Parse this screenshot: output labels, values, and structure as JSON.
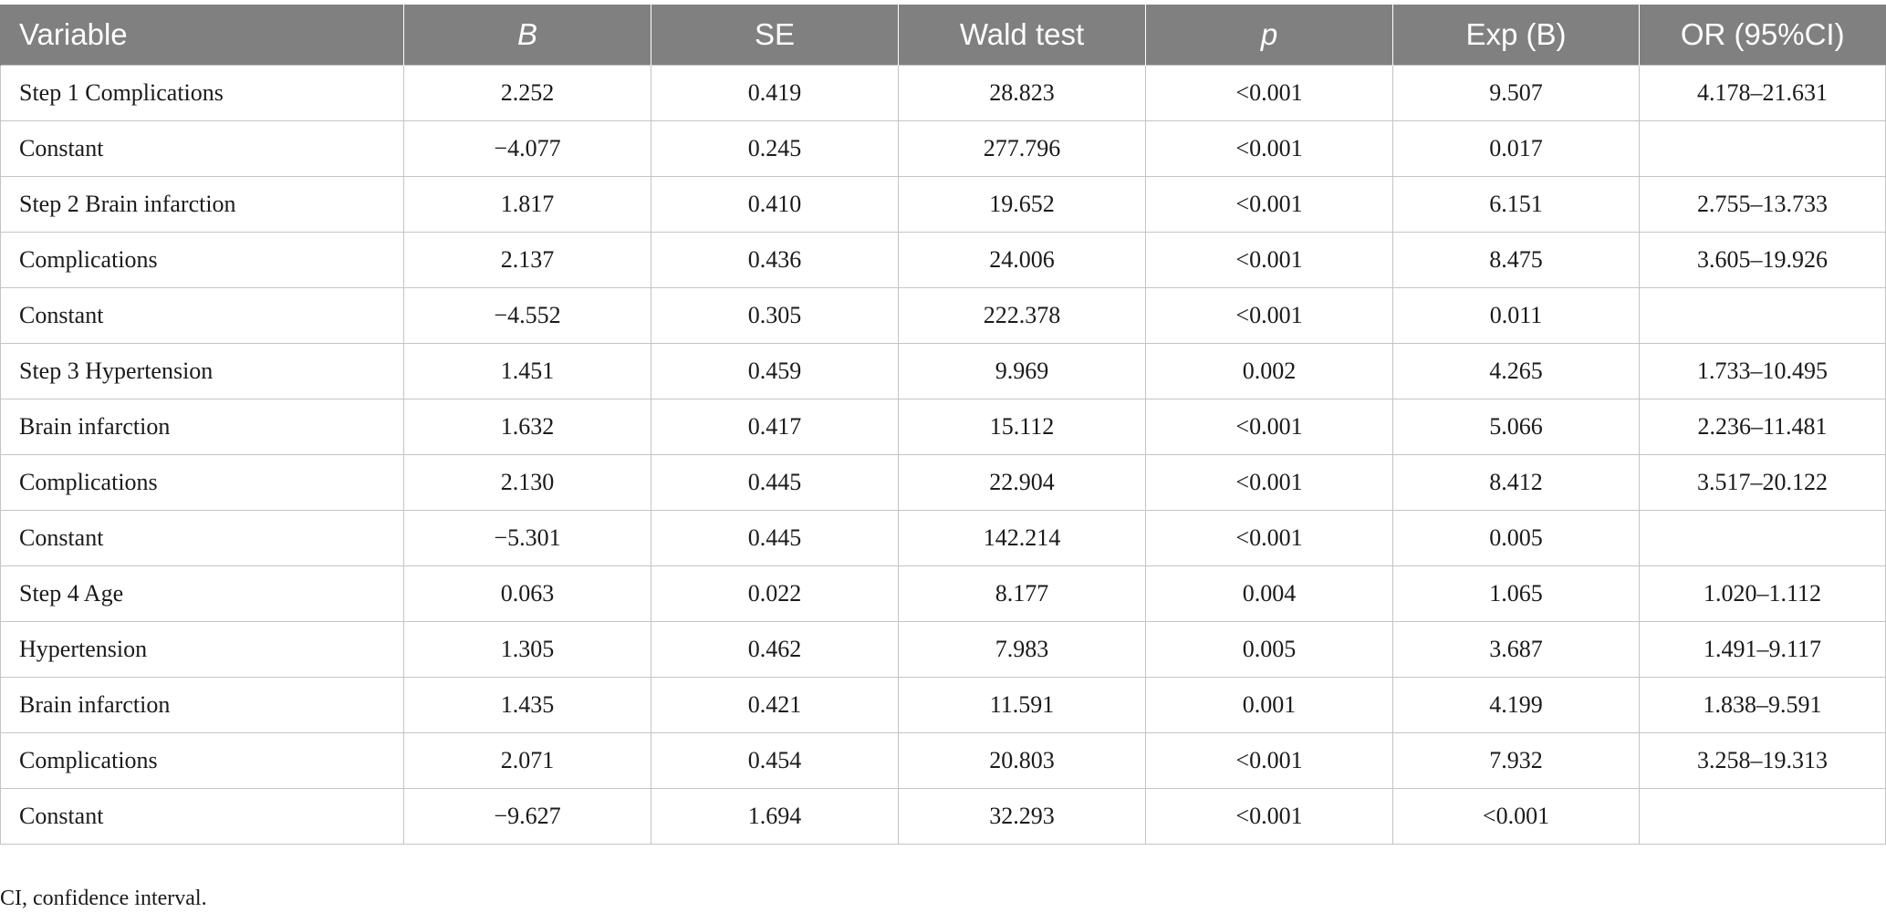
{
  "table": {
    "headers": [
      "Variable",
      "B",
      "SE",
      "Wald test",
      "p",
      "Exp (B)",
      "OR (95%CI)"
    ],
    "rows": [
      [
        "Step 1 Complications",
        "2.252",
        "0.419",
        "28.823",
        "<0.001",
        "9.507",
        "4.178–21.631"
      ],
      [
        "Constant",
        "−4.077",
        "0.245",
        "277.796",
        "<0.001",
        "0.017",
        ""
      ],
      [
        "Step 2 Brain infarction",
        "1.817",
        "0.410",
        "19.652",
        "<0.001",
        "6.151",
        "2.755–13.733"
      ],
      [
        "Complications",
        "2.137",
        "0.436",
        "24.006",
        "<0.001",
        "8.475",
        "3.605–19.926"
      ],
      [
        "Constant",
        "−4.552",
        "0.305",
        "222.378",
        "<0.001",
        "0.011",
        ""
      ],
      [
        "Step 3 Hypertension",
        "1.451",
        "0.459",
        "9.969",
        "0.002",
        "4.265",
        "1.733–10.495"
      ],
      [
        "Brain infarction",
        "1.632",
        "0.417",
        "15.112",
        "<0.001",
        "5.066",
        "2.236–11.481"
      ],
      [
        "Complications",
        "2.130",
        "0.445",
        "22.904",
        "<0.001",
        "8.412",
        "3.517–20.122"
      ],
      [
        "Constant",
        "−5.301",
        "0.445",
        "142.214",
        "<0.001",
        "0.005",
        ""
      ],
      [
        "Step 4 Age",
        "0.063",
        "0.022",
        "8.177",
        "0.004",
        "1.065",
        "1.020–1.112"
      ],
      [
        "Hypertension",
        "1.305",
        "0.462",
        "7.983",
        "0.005",
        "3.687",
        "1.491–9.117"
      ],
      [
        "Brain infarction",
        "1.435",
        "0.421",
        "11.591",
        "0.001",
        "4.199",
        "1.838–9.591"
      ],
      [
        "Complications",
        "2.071",
        "0.454",
        "20.803",
        "<0.001",
        "7.932",
        "3.258–19.313"
      ],
      [
        "Constant",
        "−9.627",
        "1.694",
        "32.293",
        "<0.001",
        "<0.001",
        ""
      ]
    ]
  },
  "footnote": "CI, confidence interval.",
  "colors": {
    "header_bg": "#808080",
    "header_text": "#ffffff",
    "border": "#c4c4c4"
  }
}
